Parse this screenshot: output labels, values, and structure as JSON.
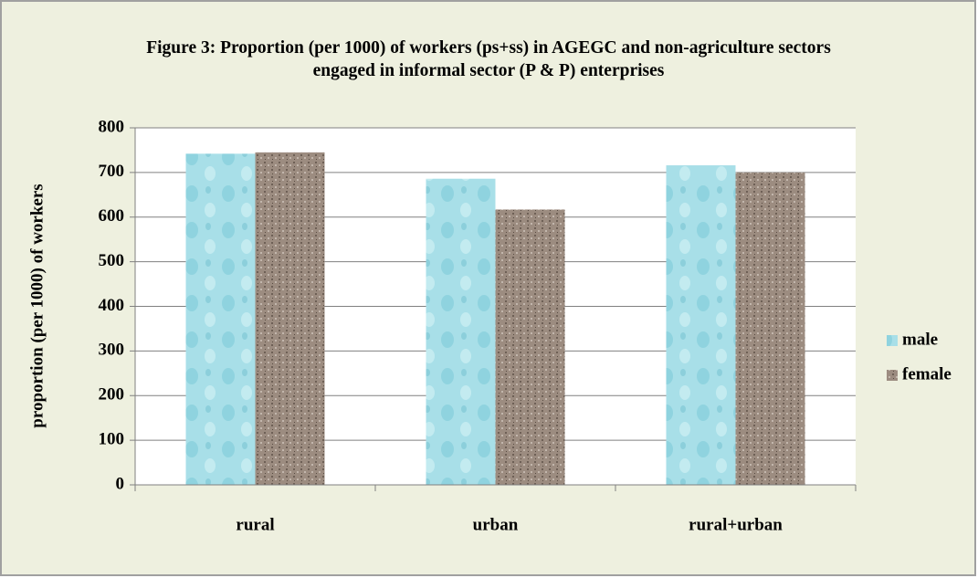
{
  "chart_data": {
    "type": "bar",
    "title": "Figure 3: Proportion (per 1000) of workers (ps+ss) in AGEGC and non-agriculture sectors engaged in informal sector (P & P) enterprises",
    "y_label": "proportion (per 1000) of workers",
    "categories": [
      "rural",
      "urban",
      "rural+urban"
    ],
    "series": [
      {
        "name": "male",
        "color": "#a8dfe8",
        "values": [
          742,
          686,
          716
        ]
      },
      {
        "name": "female",
        "color": "#9c8c80",
        "values": [
          745,
          617,
          700
        ]
      }
    ],
    "ylim": [
      0,
      800
    ],
    "yticks": [
      0,
      100,
      200,
      300,
      400,
      500,
      600,
      700,
      800
    ],
    "grid": true,
    "legend": "right"
  }
}
